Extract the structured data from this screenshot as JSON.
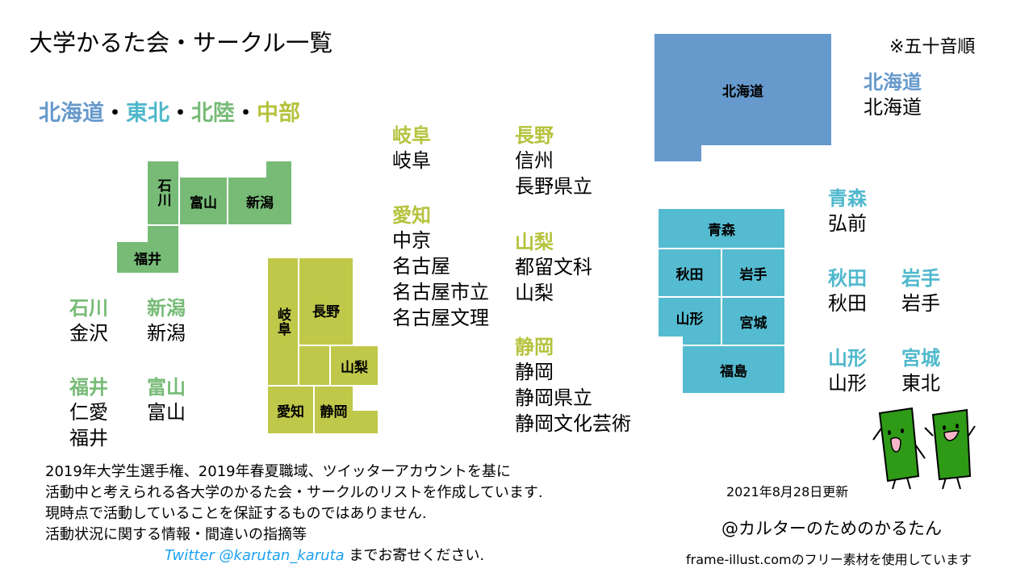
{
  "title": "大学かるた会・サークル一覧",
  "sort_note": "※五十音順",
  "regions": [
    "北海道",
    "東北",
    "北陸",
    "中部"
  ],
  "region_separator": "・",
  "map_labels": {
    "ishikawa": "石川",
    "toyama": "富山",
    "niigata": "新潟",
    "fukui": "福井",
    "gifu": "岐阜",
    "nagano": "長野",
    "yamanashi": "山梨",
    "aichi": "愛知",
    "shizuoka": "静岡",
    "hokkaido": "北海道",
    "aomori": "青森",
    "akita": "秋田",
    "iwate": "岩手",
    "yamagata": "山形",
    "miyagi": "宮城",
    "fukushima": "福島"
  },
  "prefectures": {
    "ishikawa": {
      "name": "石川",
      "circles": [
        "金沢"
      ]
    },
    "niigata": {
      "name": "新潟",
      "circles": [
        "新潟"
      ]
    },
    "fukui": {
      "name": "福井",
      "circles": [
        "仁愛",
        "福井"
      ]
    },
    "toyama": {
      "name": "富山",
      "circles": [
        "富山"
      ]
    },
    "gifu": {
      "name": "岐阜",
      "circles": [
        "岐阜"
      ]
    },
    "aichi": {
      "name": "愛知",
      "circles": [
        "中京",
        "名古屋",
        "名古屋市立",
        "名古屋文理"
      ]
    },
    "nagano": {
      "name": "長野",
      "circles": [
        "信州",
        "長野県立"
      ]
    },
    "yamanashi": {
      "name": "山梨",
      "circles": [
        "都留文科",
        "山梨"
      ]
    },
    "shizuoka": {
      "name": "静岡",
      "circles": [
        "静岡",
        "静岡県立",
        "静岡文化芸術"
      ]
    },
    "hokkaido": {
      "name": "北海道",
      "circles": [
        "北海道"
      ]
    },
    "aomori": {
      "name": "青森",
      "circles": [
        "弘前"
      ]
    },
    "akita": {
      "name": "秋田",
      "circles": [
        "秋田"
      ]
    },
    "iwate": {
      "name": "岩手",
      "circles": [
        "岩手"
      ]
    },
    "yamagata": {
      "name": "山形",
      "circles": [
        "山形"
      ]
    },
    "miyagi": {
      "name": "宮城",
      "circles": [
        "東北"
      ]
    }
  },
  "notes": [
    "2019年大学生選手権、2019年春夏職域、ツイッターアカウントを基に",
    "活動中と考えられる各大学のかるた会・サークルのリストを作成しています.",
    "現時点で活動していることを保証するものではありません.",
    "活動状況に関する情報・間違いの指摘等"
  ],
  "twitter_link": "Twitter @karutan_karuta",
  "twitter_suffix": "までお寄せください.",
  "updated": "2021年8月28日更新",
  "author": "@カルターのためのかるたん",
  "credit": "frame-illust.comのフリー素材を使用しています",
  "colors": {
    "hokkaido": "#6699cc",
    "tohoku": "#55bbd0",
    "hokuriku": "#77bb77",
    "chubu": "#c0c84a",
    "twitter": "#1da1f2"
  }
}
